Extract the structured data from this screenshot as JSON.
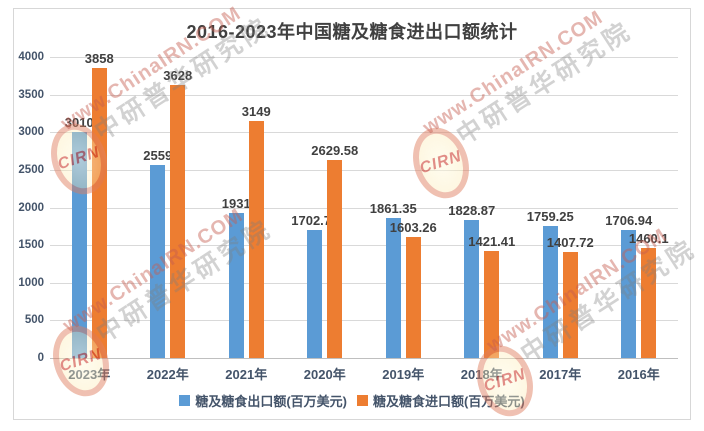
{
  "title": "2016-2023年中国糖及糖食进出口额统计",
  "colors": {
    "export_series": "#5B9BD5",
    "import_series": "#ED7D31",
    "gridline": "#D9D9D9",
    "axis_line": "#BFBFBF",
    "title_text": "#404040",
    "data_label_text": "#404040",
    "axis_label_text": "#44546A",
    "frame_border": "#D7D7D7"
  },
  "chart_data": {
    "type": "bar",
    "title": "2016-2023年中国糖及糖食进出口额统计",
    "categories": [
      "2023年",
      "2022年",
      "2021年",
      "2020年",
      "2019年",
      "2018年",
      "2017年",
      "2016年"
    ],
    "series": [
      {
        "name": "糖及糖食出口额(百万美元)",
        "color": "#5B9BD5",
        "values": [
          3010,
          2559,
          1931,
          1702.78,
          1861.35,
          1828.87,
          1759.25,
          1706.94
        ]
      },
      {
        "name": "糖及糖食进口额(百万美元)",
        "color": "#ED7D31",
        "values": [
          3858,
          3628,
          3149,
          2629.58,
          1603.26,
          1421.41,
          1407.72,
          1460.1
        ]
      }
    ],
    "xlabel": "",
    "ylabel": "",
    "ylim": [
      0,
      4000
    ],
    "ytick_step": 500,
    "grid": true,
    "legend_position": "bottom",
    "data_labels": true
  },
  "y_axis": {
    "ticks": [
      "0",
      "500",
      "1000",
      "1500",
      "2000",
      "2500",
      "3000",
      "3500",
      "4000"
    ]
  },
  "watermark": {
    "logo_text": "CIRN",
    "line1": "www.ChinaIRN.COM",
    "line2": "中研普华研究院"
  }
}
